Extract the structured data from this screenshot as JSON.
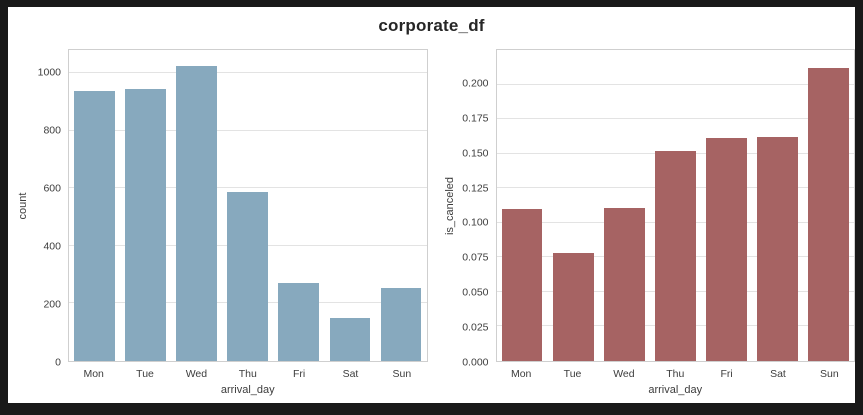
{
  "title": "corporate_df",
  "colors": {
    "frame": "#191919",
    "figure_background": "#ffffff",
    "grid": "#e3e3e3",
    "spine": "#cfcfcf",
    "tick_text": "#3d3d3d",
    "title_text": "#262626",
    "left_bar": "#87a9be",
    "right_bar": "#a66363"
  },
  "chart_data": [
    {
      "type": "bar",
      "title": "",
      "categories": [
        "Mon",
        "Tue",
        "Wed",
        "Thu",
        "Fri",
        "Sat",
        "Sun"
      ],
      "values": [
        937,
        944,
        1023,
        587,
        272,
        150,
        255
      ],
      "xlabel": "arrival_day",
      "ylabel": "count",
      "ylim": [
        0,
        1080
      ],
      "yticks": [
        0,
        200,
        400,
        600,
        800,
        1000
      ],
      "ytick_labels": [
        "0",
        "200",
        "400",
        "600",
        "800",
        "1000"
      ],
      "bar_color": "#87a9be",
      "grid": true,
      "legend": false
    },
    {
      "type": "bar",
      "title": "",
      "categories": [
        "Mon",
        "Tue",
        "Wed",
        "Thu",
        "Fri",
        "Sat",
        "Sun"
      ],
      "values": [
        0.11,
        0.078,
        0.111,
        0.152,
        0.161,
        0.162,
        0.212
      ],
      "xlabel": "arrival_day",
      "ylabel": "is_canceled",
      "ylim": [
        0,
        0.225
      ],
      "yticks": [
        0,
        0.025,
        0.05,
        0.075,
        0.1,
        0.125,
        0.15,
        0.175,
        0.2
      ],
      "ytick_labels": [
        "0.000",
        "0.025",
        "0.050",
        "0.075",
        "0.100",
        "0.125",
        "0.150",
        "0.175",
        "0.200"
      ],
      "bar_color": "#a66363",
      "grid": true,
      "legend": false
    }
  ]
}
